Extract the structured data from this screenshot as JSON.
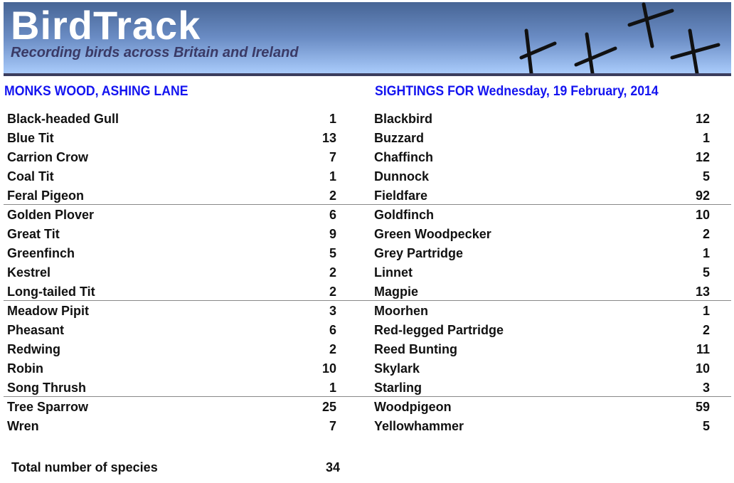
{
  "header": {
    "title": "BirdTrack",
    "subtitle": "Recording birds across Britain and Ireland"
  },
  "site": "MONKS WOOD, ASHING LANE",
  "sightings_heading": "SIGHTINGS FOR Wednesday, 19 February, 2014",
  "left": [
    [
      "Black-headed Gull",
      "1"
    ],
    [
      "Blue Tit",
      "13"
    ],
    [
      "Carrion Crow",
      "7"
    ],
    [
      "Coal Tit",
      "1"
    ],
    [
      "Feral Pigeon",
      "2"
    ],
    [
      "Golden Plover",
      "6"
    ],
    [
      "Great Tit",
      "9"
    ],
    [
      "Greenfinch",
      "5"
    ],
    [
      "Kestrel",
      "2"
    ],
    [
      "Long-tailed Tit",
      "2"
    ],
    [
      "Meadow Pipit",
      "3"
    ],
    [
      "Pheasant",
      "6"
    ],
    [
      "Redwing",
      "2"
    ],
    [
      "Robin",
      "10"
    ],
    [
      "Song Thrush",
      "1"
    ],
    [
      "Tree Sparrow",
      "25"
    ],
    [
      "Wren",
      "7"
    ]
  ],
  "right": [
    [
      "Blackbird",
      "12"
    ],
    [
      "Buzzard",
      "1"
    ],
    [
      "Chaffinch",
      "12"
    ],
    [
      "Dunnock",
      "5"
    ],
    [
      "Fieldfare",
      "92"
    ],
    [
      "Goldfinch",
      "10"
    ],
    [
      "Green Woodpecker",
      "2"
    ],
    [
      "Grey Partridge",
      "1"
    ],
    [
      "Linnet",
      "5"
    ],
    [
      "Magpie",
      "13"
    ],
    [
      "Moorhen",
      "1"
    ],
    [
      "Red-legged Partridge",
      "2"
    ],
    [
      "Reed Bunting",
      "11"
    ],
    [
      "Skylark",
      "10"
    ],
    [
      "Starling",
      "3"
    ],
    [
      "Woodpigeon",
      "59"
    ],
    [
      "Yellowhammer",
      "5"
    ]
  ],
  "total": {
    "label": "Total number of species",
    "value": "34"
  }
}
